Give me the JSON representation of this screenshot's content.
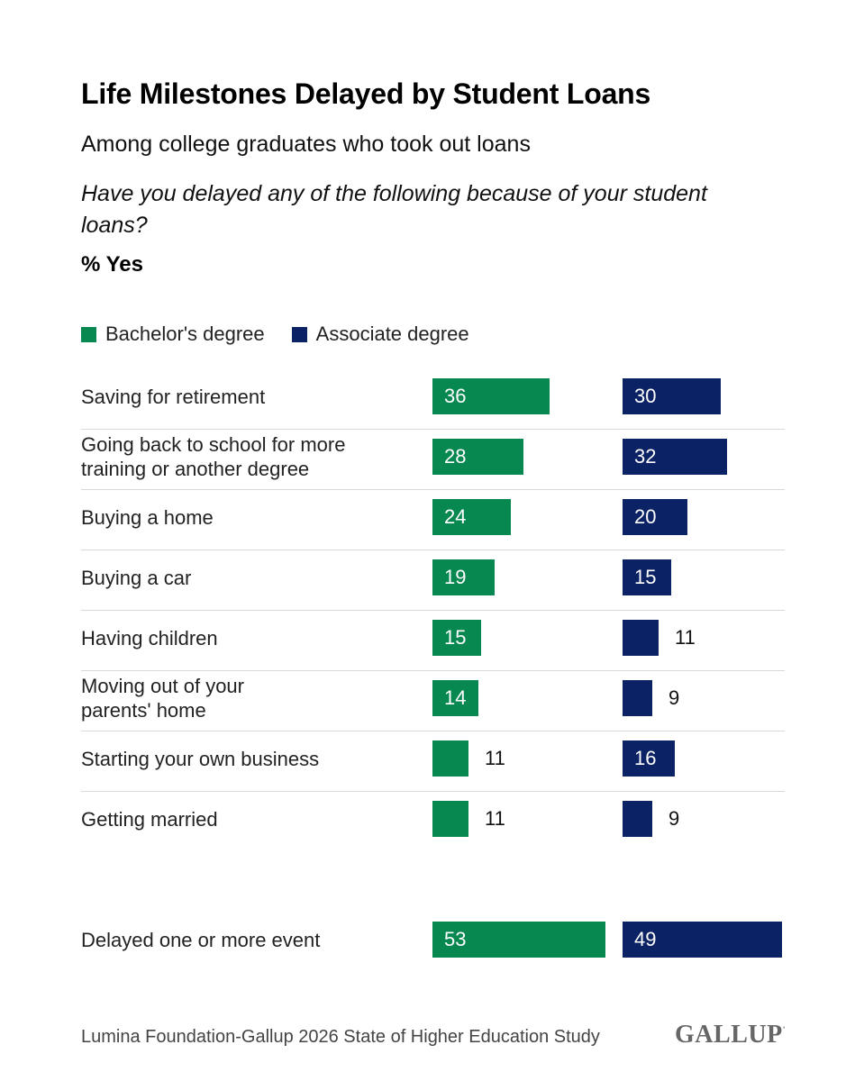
{
  "header": {
    "title": "Life Milestones Delayed by Student Loans",
    "subtitle": "Among college graduates who took out loans",
    "question": "Have you delayed any of the following because of your student loans?",
    "unit": "% Yes"
  },
  "colors": {
    "bachelors": "#078850",
    "associate": "#0b2265"
  },
  "chart_data": {
    "type": "bar",
    "orientation": "horizontal",
    "categories": [
      "Saving for retirement",
      "Going back to school for more\ntraining or another degree",
      "Buying a home",
      "Buying a car",
      "Having children",
      "Moving out of your\nparents' home",
      "Starting your own business",
      "Getting married",
      "Delayed one or more event"
    ],
    "series": [
      {
        "name": "Bachelor's degree",
        "values": [
          36,
          28,
          24,
          19,
          15,
          14,
          11,
          11,
          53
        ]
      },
      {
        "name": "Associate degree",
        "values": [
          30,
          32,
          20,
          15,
          11,
          9,
          16,
          9,
          49
        ]
      }
    ],
    "legend": "top-left",
    "grid": false
  },
  "footer": {
    "source": "Lumina Foundation-Gallup 2026 State of Higher Education Study",
    "logo": "GALLUP"
  }
}
